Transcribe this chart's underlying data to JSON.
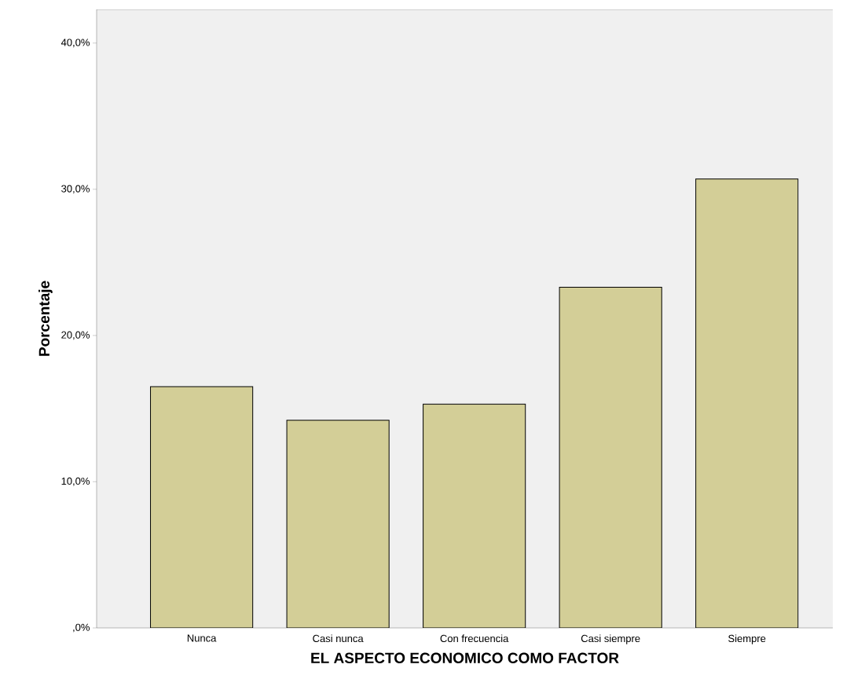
{
  "chart_data": {
    "type": "bar",
    "xlabel": "EL ASPECTO ECONOMICO COMO FACTOR",
    "ylabel": "Porcentaje",
    "categories": [
      "Nunca",
      "Casi nunca",
      "Con frecuencia",
      "Casi siempre",
      "Siempre"
    ],
    "values": [
      16.5,
      14.2,
      15.3,
      23.3,
      30.7
    ],
    "color": "#d3ce97",
    "ylim": [
      0,
      42.3
    ],
    "yticks": [
      {
        "value": 0,
        "label": ",0%"
      },
      {
        "value": 10,
        "label": "10,0%"
      },
      {
        "value": 20,
        "label": "20,0%"
      },
      {
        "value": 30,
        "label": "30,0%"
      },
      {
        "value": 40,
        "label": "40,0%"
      }
    ]
  }
}
